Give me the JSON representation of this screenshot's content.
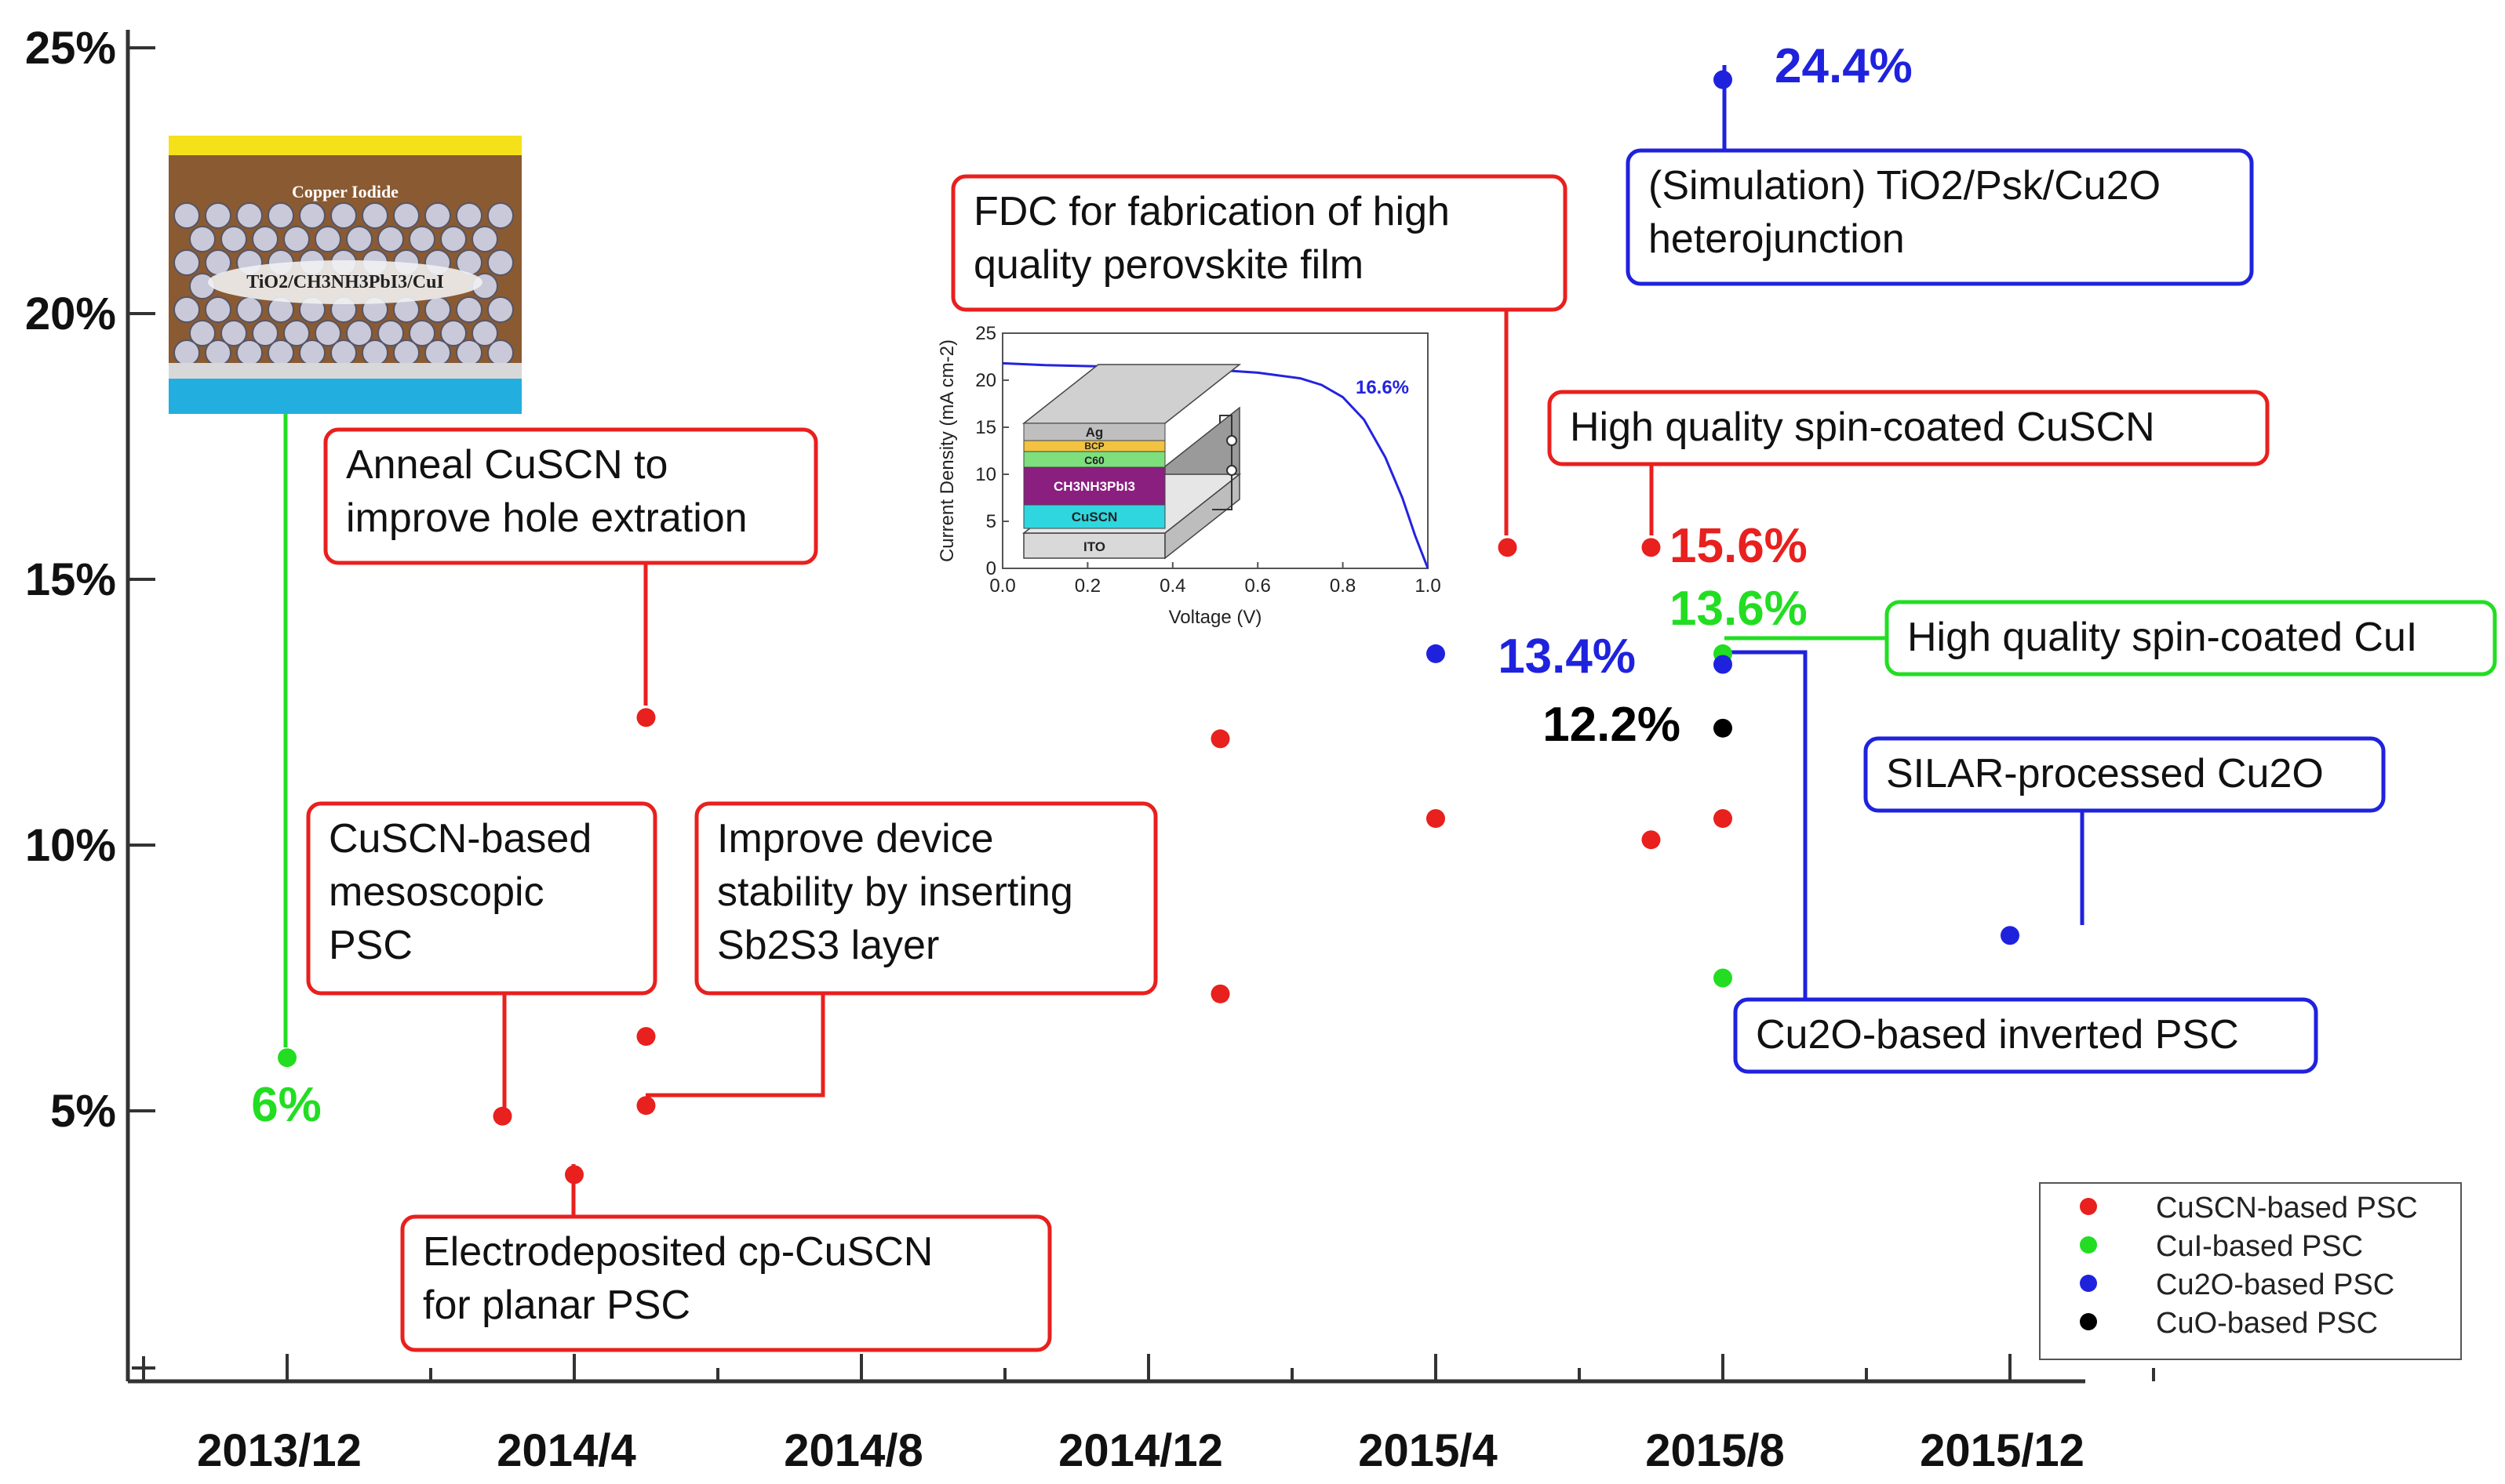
{
  "colors": {
    "CuSCN": "#e8201e",
    "CuI": "#22dd22",
    "Cu2O": "#1f22dd",
    "CuO": "#000000"
  },
  "chart_data": {
    "type": "scatter",
    "title": "",
    "xlabel": "",
    "ylabel": "",
    "ylim": [
      0,
      25
    ],
    "ytick_labels": [
      "5%",
      "10%",
      "15%",
      "20%",
      "25%"
    ],
    "xtick_labels": [
      "2013/12",
      "2014/4",
      "2014/8",
      "2014/12",
      "2015/4",
      "2015/8",
      "2015/12"
    ],
    "legend_position": "bottom-right",
    "grid": false,
    "series": [
      {
        "name": "CuSCN-based PSC",
        "color_key": "CuSCN",
        "points": [
          {
            "x": "2014/3",
            "y": 4.9
          },
          {
            "x": "2014/4",
            "y": 3.8
          },
          {
            "x": "2014/5",
            "y": 12.4
          },
          {
            "x": "2014/5",
            "y": 6.4
          },
          {
            "x": "2014/5",
            "y": 5.1
          },
          {
            "x": "2015/1",
            "y": 12.0
          },
          {
            "x": "2015/1",
            "y": 7.2
          },
          {
            "x": "2015/4",
            "y": 10.5
          },
          {
            "x": "2015/5",
            "y": 15.6
          },
          {
            "x": "2015/7",
            "y": 15.6
          },
          {
            "x": "2015/7",
            "y": 10.1
          },
          {
            "x": "2015/8",
            "y": 10.5
          }
        ]
      },
      {
        "name": "CuI-based PSC",
        "color_key": "CuI",
        "points": [
          {
            "x": "2013/12",
            "y": 6.0
          },
          {
            "x": "2015/8",
            "y": 13.6
          },
          {
            "x": "2015/8",
            "y": 7.5
          }
        ]
      },
      {
        "name": "Cu2O-based PSC",
        "color_key": "Cu2O",
        "points": [
          {
            "x": "2015/4",
            "y": 13.6
          },
          {
            "x": "2015/8",
            "y": 13.4
          },
          {
            "x": "2015/8",
            "y": 24.4
          },
          {
            "x": "2015/12",
            "y": 8.3
          }
        ]
      },
      {
        "name": "CuO-based PSC",
        "color_key": "CuO",
        "points": [
          {
            "x": "2015/8",
            "y": 12.2
          }
        ]
      }
    ],
    "annotations": [
      {
        "text": "6%",
        "color_key": "CuI"
      },
      {
        "text": "24.4%",
        "color_key": "Cu2O"
      },
      {
        "text": "15.6%",
        "color_key": "CuSCN"
      },
      {
        "text": "13.6%",
        "color_key": "CuI"
      },
      {
        "text": "13.4%",
        "color_key": "Cu2O"
      },
      {
        "text": "12.2%",
        "color_key": "CuO"
      }
    ],
    "callouts": [
      {
        "lines": [
          "Anneal CuSCN to",
          "improve hole extration"
        ],
        "color_key": "CuSCN"
      },
      {
        "lines": [
          "CuSCN-based",
          "mesoscopic",
          "PSC"
        ],
        "color_key": "CuSCN"
      },
      {
        "lines": [
          "Improve device",
          "stability by inserting",
          "Sb2S3 layer"
        ],
        "color_key": "CuSCN"
      },
      {
        "lines": [
          "Electrodeposited cp-CuSCN",
          "for planar PSC"
        ],
        "color_key": "CuSCN"
      },
      {
        "lines": [
          "FDC for fabrication of  high",
          "quality perovskite film"
        ],
        "color_key": "CuSCN"
      },
      {
        "lines": [
          "High quality spin-coated CuSCN"
        ],
        "color_key": "CuSCN"
      },
      {
        "lines": [
          "(Simulation) TiO2/Psk/Cu2O",
          "heterojunction"
        ],
        "color_key": "Cu2O"
      },
      {
        "lines": [
          "High quality spin-coated CuI"
        ],
        "color_key": "CuI"
      },
      {
        "lines": [
          "SILAR-processed Cu2O"
        ],
        "color_key": "Cu2O"
      },
      {
        "lines": [
          "Cu2O-based inverted PSC"
        ],
        "color_key": "Cu2O"
      }
    ],
    "inset_image": {
      "top_label": "Copper Iodide",
      "mid_label": "TiO2/CH3NH3PbI3/CuI"
    },
    "inset_jv": {
      "type": "line",
      "xlabel": "Voltage (V)",
      "ylabel": "Current Density (mA cm-2)",
      "xlim": [
        0.0,
        1.0
      ],
      "ylim": [
        0,
        25
      ],
      "xticks": [
        "0.0",
        "0.2",
        "0.4",
        "0.6",
        "0.8",
        "1.0"
      ],
      "yticks": [
        "0",
        "5",
        "10",
        "15",
        "20",
        "25"
      ],
      "curve_label": "16.6%",
      "layers": [
        "Ag",
        "BCP",
        "C60",
        "CH3NH3PbI3",
        "CuSCN",
        "ITO"
      ],
      "curve": {
        "x": [
          0.0,
          0.1,
          0.2,
          0.3,
          0.4,
          0.5,
          0.6,
          0.7,
          0.75,
          0.8,
          0.85,
          0.9,
          0.94,
          0.97,
          1.0
        ],
        "y": [
          21.8,
          21.6,
          21.5,
          21.4,
          21.3,
          21.1,
          20.8,
          20.2,
          19.5,
          18.2,
          15.8,
          11.8,
          7.5,
          3.5,
          0
        ]
      }
    }
  }
}
